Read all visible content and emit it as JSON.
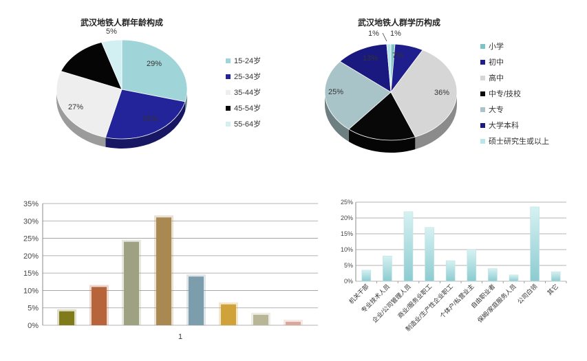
{
  "chart_data": [
    {
      "type": "pie",
      "title": "武汉地铁人群年龄构成",
      "categories": [
        "15-24岁",
        "25-34岁",
        "35-44岁",
        "45-54岁",
        "55-64岁"
      ],
      "values": [
        29,
        25,
        27,
        14,
        5
      ],
      "labels": [
        "29%",
        "25%",
        "27%",
        "",
        "5%"
      ],
      "colors": [
        "#9FD4D8",
        "#23239A",
        "#EEEEEE",
        "#050505",
        "#D2EFF2"
      ],
      "legend": "right"
    },
    {
      "type": "pie",
      "title": "武汉地铁人群学历构成",
      "categories": [
        "小学",
        "初中",
        "高中",
        "中专/技校",
        "大专",
        "大学本科",
        "硕士研究生或以上"
      ],
      "values": [
        1,
        7,
        36,
        17,
        25,
        13,
        1
      ],
      "labels": [
        "1%",
        "7%",
        "36%",
        "",
        "25%",
        "13%",
        "1%"
      ],
      "colors": [
        "#7FC4C4",
        "#1E1E8C",
        "#D6D6D6",
        "#080808",
        "#A9C4C8",
        "#191980",
        "#B8E6EC"
      ],
      "legend": "right"
    },
    {
      "type": "bar",
      "categories": [
        "1"
      ],
      "series": [
        {
          "values": [
            4
          ]
        },
        {
          "values": [
            11
          ]
        },
        {
          "values": [
            24
          ]
        },
        {
          "values": [
            31
          ]
        },
        {
          "values": [
            14
          ]
        },
        {
          "values": [
            6
          ]
        },
        {
          "values": [
            3
          ]
        },
        {
          "values": [
            1
          ]
        }
      ],
      "colors": [
        "#7F7A1A",
        "#B8643A",
        "#9EA283",
        "#A98852",
        "#7C9DAB",
        "#CFA23A",
        "#B9B597",
        "#D9A79B"
      ],
      "ylim": [
        0,
        35
      ],
      "yticks": [
        "0%",
        "5%",
        "10%",
        "15%",
        "20%",
        "25%",
        "30%",
        "35%"
      ],
      "grid": true
    },
    {
      "type": "bar",
      "categories": [
        "机关干部",
        "专业技术人员",
        "企业/公司管理人员",
        "商业/服务业职工",
        "制造业/生产性企业职工",
        "个体户/私营业主",
        "自由职业者",
        "保姆/家庭服务人员",
        "公司白领",
        "其它"
      ],
      "values": [
        3.5,
        8,
        22,
        17,
        6.5,
        10,
        4,
        2,
        23.5,
        3
      ],
      "ylim": [
        0,
        25
      ],
      "yticks": [
        "0%",
        "5%",
        "10%",
        "15%",
        "20%",
        "25%"
      ],
      "grid": true,
      "colors": [
        "#A8DCDE"
      ]
    }
  ]
}
